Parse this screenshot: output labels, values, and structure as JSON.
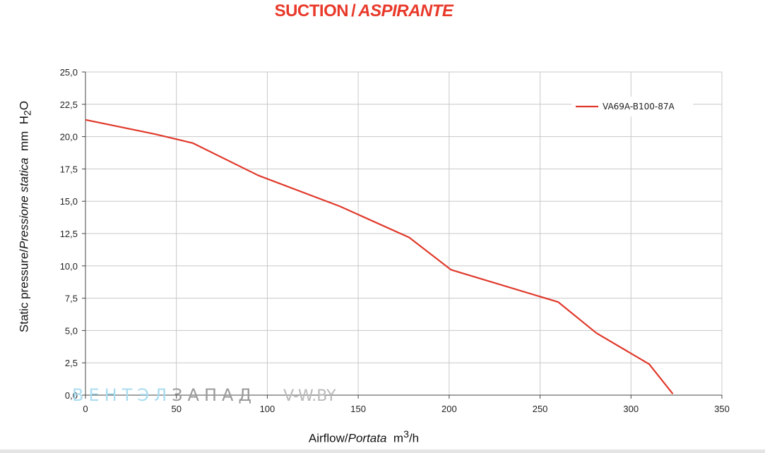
{
  "chart_data": {
    "type": "line",
    "title": "SUCTION",
    "title_separator": "/",
    "title_alt": "ASPIRANTE",
    "title_color": "#e8392a",
    "xlabel": "Airflow",
    "xlabel_alt": "Portata",
    "xunit": "m",
    "xunit_sup": "3",
    "xunit_tail": "/h",
    "ylabel": "Static pressure",
    "ylabel_alt": "Pressione statica",
    "yunit": "mm",
    "yunit_letter": "H",
    "yunit_sub": "2",
    "yunit_tail": "O",
    "label_separator": "/",
    "xlim": [
      0,
      350
    ],
    "ylim": [
      0,
      25
    ],
    "x_ticks": [
      0,
      50,
      100,
      150,
      200,
      250,
      300,
      350
    ],
    "x_tick_labels": [
      "0",
      "50",
      "100",
      "150",
      "200",
      "250",
      "300",
      "350"
    ],
    "y_ticks": [
      0,
      2.5,
      5,
      7.5,
      10,
      12.5,
      15,
      17.5,
      20,
      22.5,
      25
    ],
    "y_tick_labels": [
      "0,0",
      "2,5",
      "5,0",
      "7,5",
      "10,0",
      "12,5",
      "15,0",
      "17,5",
      "20,0",
      "22,5",
      "25,0"
    ],
    "grid": true,
    "grid_color": "#c8c8c8",
    "legend_position": "top-right",
    "series": [
      {
        "name": "VA69A-B100-87A",
        "color": "#e0392b",
        "x": [
          0,
          38,
          59,
          95,
          140,
          178,
          201,
          260,
          281,
          310,
          323
        ],
        "y": [
          21.3,
          20.2,
          19.5,
          17.0,
          14.6,
          12.2,
          9.7,
          7.2,
          4.8,
          2.4,
          0.1
        ]
      }
    ]
  },
  "watermark": {
    "part1": "ВЕНТЭЛ",
    "part2": "ЗАПАД",
    "part3": "V-W.BY"
  }
}
